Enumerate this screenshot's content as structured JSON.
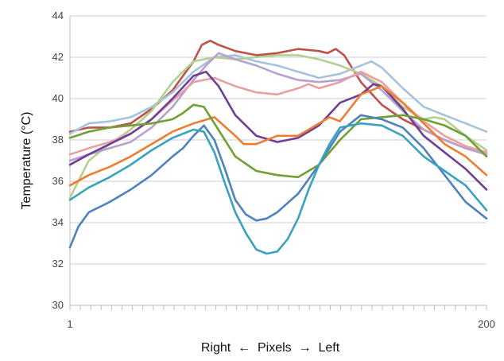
{
  "chart_data": {
    "type": "line",
    "title": "",
    "xlabel": "Right  ←  Pixels  →  Left",
    "ylabel": "Temperature (°C)",
    "xlim": [
      1,
      200
    ],
    "ylim": [
      30,
      44
    ],
    "yticks": [
      30,
      32,
      34,
      36,
      38,
      40,
      42,
      44
    ],
    "xtick_labels": [
      "1",
      "200"
    ],
    "grid": true,
    "legend": "none",
    "series": [
      {
        "color": "#c0504d",
        "x": [
          1,
          10,
          20,
          30,
          40,
          50,
          60,
          64,
          68,
          72,
          80,
          90,
          100,
          110,
          120,
          124,
          128,
          132,
          140,
          150,
          160,
          170,
          180,
          190,
          200
        ],
        "y": [
          38.4,
          38.6,
          38.6,
          38.8,
          39.5,
          40.4,
          41.8,
          42.6,
          42.8,
          42.6,
          42.3,
          42.1,
          42.2,
          42.4,
          42.3,
          42.2,
          42.4,
          42.1,
          40.8,
          39.7,
          39.0,
          38.5,
          38.0,
          37.6,
          37.3
        ]
      },
      {
        "color": "#a6c3dd",
        "x": [
          1,
          10,
          20,
          30,
          40,
          50,
          60,
          70,
          80,
          90,
          100,
          110,
          120,
          130,
          140,
          145,
          150,
          160,
          170,
          180,
          190,
          200
        ],
        "y": [
          38.3,
          38.8,
          38.9,
          39.1,
          39.6,
          40.3,
          41.3,
          42.0,
          42.1,
          41.8,
          41.6,
          41.3,
          41.0,
          41.2,
          41.6,
          41.8,
          41.5,
          40.5,
          39.6,
          39.2,
          38.8,
          38.4
        ]
      },
      {
        "color": "#b5d08e",
        "x": [
          1,
          5,
          10,
          20,
          30,
          40,
          50,
          60,
          70,
          80,
          90,
          100,
          110,
          120,
          130,
          140,
          150,
          160,
          170,
          175,
          180,
          190,
          200
        ],
        "y": [
          35.2,
          36.0,
          37.0,
          37.8,
          38.5,
          39.4,
          40.8,
          41.8,
          42.0,
          41.9,
          42.0,
          42.1,
          42.1,
          41.9,
          41.6,
          41.2,
          40.6,
          39.6,
          39.0,
          39.1,
          39.0,
          38.2,
          37.5
        ]
      },
      {
        "color": "#b9a0cf",
        "x": [
          1,
          10,
          20,
          30,
          40,
          50,
          60,
          66,
          72,
          80,
          90,
          100,
          110,
          120,
          130,
          140,
          150,
          160,
          170,
          180,
          190,
          200
        ],
        "y": [
          37.0,
          37.3,
          37.6,
          37.9,
          38.6,
          39.6,
          40.9,
          41.6,
          42.2,
          41.9,
          41.6,
          41.2,
          40.9,
          40.8,
          40.9,
          41.2,
          40.4,
          39.4,
          38.5,
          38.0,
          37.6,
          37.3
        ]
      },
      {
        "color": "#e8a0a0",
        "x": [
          1,
          10,
          20,
          30,
          40,
          50,
          60,
          70,
          80,
          90,
          100,
          110,
          115,
          120,
          130,
          140,
          150,
          160,
          170,
          180,
          190,
          200
        ],
        "y": [
          37.3,
          37.6,
          37.9,
          38.3,
          39.0,
          39.9,
          40.8,
          41.0,
          40.6,
          40.3,
          40.2,
          40.5,
          40.7,
          40.5,
          40.8,
          41.3,
          40.8,
          39.8,
          38.9,
          38.2,
          37.7,
          37.4
        ]
      },
      {
        "color": "#6f3f97",
        "x": [
          1,
          10,
          20,
          30,
          40,
          50,
          60,
          66,
          72,
          80,
          90,
          100,
          110,
          120,
          130,
          140,
          146,
          150,
          160,
          170,
          180,
          190,
          200
        ],
        "y": [
          36.8,
          37.3,
          37.8,
          38.3,
          39.0,
          40.0,
          41.1,
          41.3,
          40.6,
          39.2,
          38.2,
          37.9,
          38.1,
          38.7,
          39.8,
          40.2,
          40.7,
          40.6,
          39.5,
          38.2,
          37.4,
          36.6,
          35.6
        ]
      },
      {
        "color": "#ed7d31",
        "x": [
          1,
          10,
          20,
          30,
          40,
          50,
          60,
          70,
          80,
          84,
          90,
          100,
          110,
          120,
          125,
          130,
          140,
          150,
          160,
          170,
          180,
          190,
          200
        ],
        "y": [
          35.8,
          36.3,
          36.7,
          37.2,
          37.8,
          38.4,
          38.8,
          39.1,
          38.2,
          37.8,
          37.8,
          38.2,
          38.2,
          38.8,
          39.1,
          38.9,
          40.2,
          40.6,
          39.8,
          38.8,
          37.8,
          37.2,
          36.3
        ]
      },
      {
        "color": "#70a033",
        "x": [
          1,
          10,
          20,
          30,
          40,
          50,
          55,
          60,
          65,
          70,
          80,
          90,
          100,
          110,
          120,
          130,
          140,
          150,
          160,
          170,
          180,
          190,
          200
        ],
        "y": [
          38.1,
          38.4,
          38.6,
          38.7,
          38.8,
          39.0,
          39.3,
          39.7,
          39.6,
          38.8,
          37.2,
          36.5,
          36.3,
          36.2,
          36.8,
          38.0,
          39.0,
          39.1,
          39.2,
          39.0,
          38.7,
          38.2,
          37.2
        ]
      },
      {
        "color": "#4f81bd",
        "x": [
          1,
          5,
          10,
          20,
          30,
          40,
          50,
          55,
          60,
          65,
          70,
          75,
          80,
          85,
          90,
          95,
          100,
          110,
          120,
          130,
          140,
          150,
          160,
          170,
          180,
          190,
          200
        ],
        "y": [
          32.8,
          33.8,
          34.5,
          35.0,
          35.6,
          36.3,
          37.2,
          37.6,
          38.2,
          38.7,
          38.0,
          36.6,
          35.1,
          34.4,
          34.1,
          34.2,
          34.5,
          35.4,
          36.8,
          38.4,
          39.2,
          39.0,
          38.6,
          37.6,
          36.3,
          35.0,
          34.2
        ]
      },
      {
        "color": "#3aa2bf",
        "x": [
          1,
          10,
          20,
          30,
          40,
          50,
          60,
          65,
          70,
          75,
          80,
          85,
          90,
          95,
          100,
          105,
          110,
          115,
          120,
          125,
          130,
          140,
          150,
          160,
          170,
          180,
          190,
          200
        ],
        "y": [
          35.1,
          35.7,
          36.2,
          36.8,
          37.5,
          38.1,
          38.5,
          38.4,
          37.4,
          35.9,
          34.5,
          33.5,
          32.7,
          32.5,
          32.6,
          33.2,
          34.2,
          35.6,
          36.8,
          37.8,
          38.6,
          38.8,
          38.7,
          38.2,
          37.2,
          36.5,
          35.8,
          34.6
        ]
      }
    ]
  }
}
